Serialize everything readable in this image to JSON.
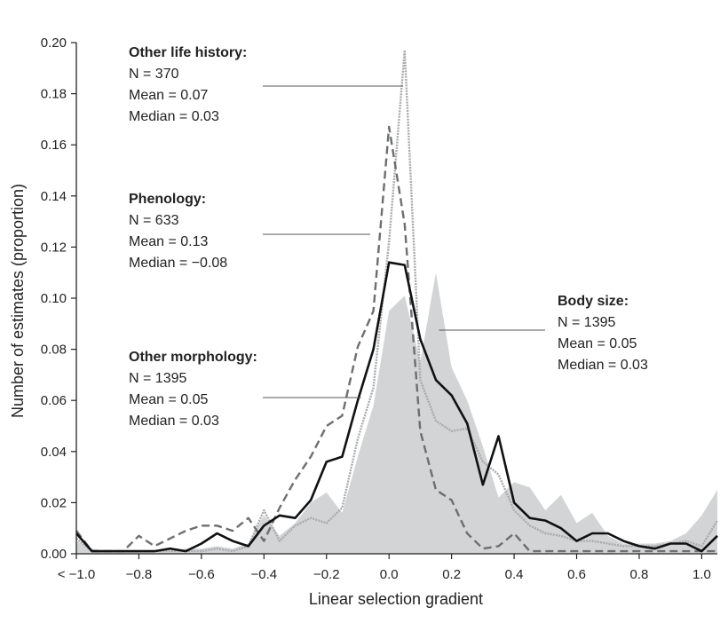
{
  "chart_data": {
    "type": "line",
    "xlabel": "Linear selection gradient",
    "ylabel": "Number of estimates (proportion)",
    "xlim": [
      -1.0,
      1.05
    ],
    "ylim": [
      0,
      0.2
    ],
    "x_ticks": [
      {
        "value": -1.0,
        "label": "< −1.0"
      },
      {
        "value": -0.8,
        "label": "−0.8"
      },
      {
        "value": -0.6,
        "label": "−0.6"
      },
      {
        "value": -0.4,
        "label": "−0.4"
      },
      {
        "value": -0.2,
        "label": "−0.2"
      },
      {
        "value": 0.0,
        "label": "0.0"
      },
      {
        "value": 0.2,
        "label": "0.2"
      },
      {
        "value": 0.4,
        "label": "0.4"
      },
      {
        "value": 0.6,
        "label": "0.6"
      },
      {
        "value": 0.8,
        "label": "0.8"
      },
      {
        "value": 1.0,
        "label": "1.0"
      }
    ],
    "y_ticks": [
      {
        "value": 0.0,
        "label": "0.00"
      },
      {
        "value": 0.02,
        "label": "0.02"
      },
      {
        "value": 0.04,
        "label": "0.04"
      },
      {
        "value": 0.06,
        "label": "0.06"
      },
      {
        "value": 0.08,
        "label": "0.08"
      },
      {
        "value": 0.1,
        "label": "0.10"
      },
      {
        "value": 0.12,
        "label": "0.12"
      },
      {
        "value": 0.14,
        "label": "0.14"
      },
      {
        "value": 0.16,
        "label": "0.16"
      },
      {
        "value": 0.18,
        "label": "0.18"
      },
      {
        "value": 0.2,
        "label": "0.20"
      }
    ],
    "series": [
      {
        "key": "body_size",
        "render": "area",
        "color": "#d3d4d6",
        "x": [
          -1.0,
          -0.95,
          -0.9,
          -0.85,
          -0.8,
          -0.75,
          -0.7,
          -0.65,
          -0.6,
          -0.55,
          -0.5,
          -0.45,
          -0.4,
          -0.35,
          -0.3,
          -0.25,
          -0.2,
          -0.15,
          -0.1,
          -0.05,
          0.0,
          0.05,
          0.1,
          0.15,
          0.2,
          0.25,
          0.3,
          0.35,
          0.4,
          0.45,
          0.5,
          0.55,
          0.6,
          0.65,
          0.7,
          0.75,
          0.8,
          0.85,
          0.9,
          0.95,
          1.0,
          1.05
        ],
        "y": [
          0.005,
          0.002,
          0.001,
          0.001,
          0.001,
          0.001,
          0.001,
          0.002,
          0.002,
          0.003,
          0.002,
          0.004,
          0.015,
          0.007,
          0.012,
          0.02,
          0.024,
          0.016,
          0.038,
          0.058,
          0.095,
          0.101,
          0.075,
          0.11,
          0.073,
          0.06,
          0.042,
          0.022,
          0.028,
          0.026,
          0.017,
          0.023,
          0.012,
          0.016,
          0.007,
          0.004,
          0.004,
          0.004,
          0.005,
          0.008,
          0.015,
          0.025
        ]
      },
      {
        "key": "other_life_history",
        "render": "dotted",
        "color": "#a9aaac",
        "x": [
          -1.0,
          -0.95,
          -0.9,
          -0.85,
          -0.8,
          -0.75,
          -0.7,
          -0.65,
          -0.6,
          -0.55,
          -0.5,
          -0.45,
          -0.4,
          -0.35,
          -0.3,
          -0.25,
          -0.2,
          -0.15,
          -0.1,
          -0.05,
          0.0,
          0.05,
          0.1,
          0.15,
          0.2,
          0.25,
          0.3,
          0.35,
          0.4,
          0.45,
          0.5,
          0.55,
          0.6,
          0.65,
          0.7,
          0.75,
          0.8,
          0.85,
          0.9,
          0.95,
          1.0,
          1.05
        ],
        "y": [
          0.006,
          0.001,
          0.001,
          0.001,
          0.001,
          0.001,
          0.001,
          0.001,
          0.001,
          0.002,
          0.001,
          0.003,
          0.017,
          0.005,
          0.011,
          0.014,
          0.012,
          0.018,
          0.045,
          0.065,
          0.122,
          0.197,
          0.068,
          0.052,
          0.048,
          0.049,
          0.036,
          0.031,
          0.017,
          0.011,
          0.008,
          0.007,
          0.005,
          0.005,
          0.004,
          0.003,
          0.003,
          0.003,
          0.004,
          0.005,
          0.003,
          0.013
        ]
      },
      {
        "key": "phenology",
        "render": "dashed",
        "color": "#6d6e70",
        "x": [
          -1.0,
          -0.95,
          -0.9,
          -0.85,
          -0.8,
          -0.75,
          -0.7,
          -0.65,
          -0.6,
          -0.55,
          -0.5,
          -0.45,
          -0.4,
          -0.35,
          -0.3,
          -0.25,
          -0.2,
          -0.15,
          -0.1,
          -0.05,
          0.0,
          0.05,
          0.1,
          0.15,
          0.2,
          0.25,
          0.3,
          0.35,
          0.4,
          0.45,
          0.5,
          0.55,
          0.6,
          0.65,
          0.7,
          0.75,
          0.8,
          0.85,
          0.9,
          0.95,
          1.0,
          1.05
        ],
        "y": [
          0.009,
          0.001,
          0.001,
          0.001,
          0.007,
          0.003,
          0.006,
          0.009,
          0.011,
          0.011,
          0.009,
          0.014,
          0.005,
          0.018,
          0.029,
          0.038,
          0.05,
          0.054,
          0.081,
          0.095,
          0.167,
          0.129,
          0.048,
          0.025,
          0.021,
          0.008,
          0.002,
          0.003,
          0.008,
          0.001,
          0.001,
          0.001,
          0.001,
          0.001,
          0.001,
          0.001,
          0.001,
          0.001,
          0.001,
          0.001,
          0.001,
          0.001
        ]
      },
      {
        "key": "other_morphology",
        "render": "solid",
        "color": "#111111",
        "x": [
          -1.0,
          -0.95,
          -0.9,
          -0.85,
          -0.8,
          -0.75,
          -0.7,
          -0.65,
          -0.6,
          -0.55,
          -0.5,
          -0.45,
          -0.4,
          -0.35,
          -0.3,
          -0.25,
          -0.2,
          -0.15,
          -0.1,
          -0.05,
          0.0,
          0.05,
          0.1,
          0.15,
          0.2,
          0.25,
          0.3,
          0.35,
          0.4,
          0.45,
          0.5,
          0.55,
          0.6,
          0.65,
          0.7,
          0.75,
          0.8,
          0.85,
          0.9,
          0.95,
          1.0,
          1.05
        ],
        "y": [
          0.008,
          0.001,
          0.001,
          0.001,
          0.001,
          0.001,
          0.002,
          0.001,
          0.004,
          0.008,
          0.005,
          0.003,
          0.011,
          0.015,
          0.014,
          0.021,
          0.036,
          0.038,
          0.06,
          0.08,
          0.114,
          0.113,
          0.084,
          0.068,
          0.062,
          0.051,
          0.027,
          0.046,
          0.02,
          0.014,
          0.013,
          0.01,
          0.005,
          0.008,
          0.008,
          0.005,
          0.003,
          0.002,
          0.004,
          0.004,
          0.001,
          0.007
        ]
      }
    ],
    "annotations": [
      {
        "key": "other_life_history",
        "title": "Other life history:",
        "lines": [
          "N = 370",
          "Mean = 0.07",
          "Median = 0.03"
        ],
        "leader_to": {
          "x": 0.045,
          "y": 0.183
        }
      },
      {
        "key": "phenology",
        "title": "Phenology:",
        "lines": [
          "N = 633",
          "Mean = 0.13",
          "Median = −0.08"
        ],
        "leader_to": {
          "x": -0.06,
          "y": 0.126
        }
      },
      {
        "key": "other_morphology",
        "title": "Other morphology:",
        "lines": [
          "N = 1395",
          "Mean = 0.05",
          "Median = 0.03"
        ],
        "leader_to": {
          "x": -0.09,
          "y": 0.06
        }
      },
      {
        "key": "body_size",
        "title": "Body size:",
        "lines": [
          "N = 1395",
          "Mean = 0.05",
          "Median = 0.03"
        ],
        "leader_to": {
          "x": 0.16,
          "y": 0.088
        }
      }
    ]
  }
}
